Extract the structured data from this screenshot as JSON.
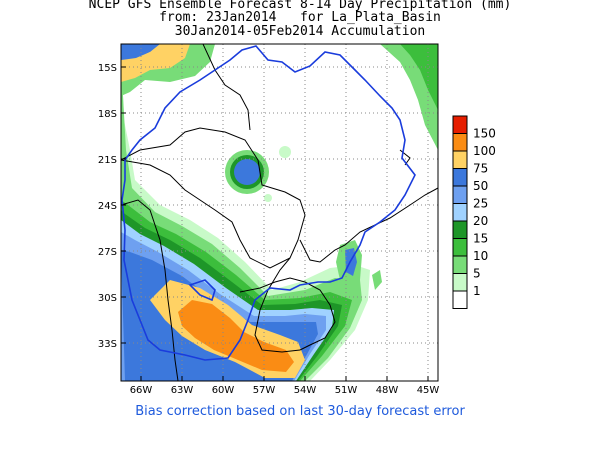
{
  "title": {
    "line1": "NCEP GFS Ensemble Forecast 8-14 Day Precipitation (mm)",
    "line2": "from: 23Jan2014   for La_Plata_Basin",
    "line3": "30Jan2014-05Feb2014 Accumulation"
  },
  "footer": "Bias correction based on last 30-day forecast error",
  "axes": {
    "lat_labels": [
      "15S",
      "18S",
      "21S",
      "24S",
      "27S",
      "30S",
      "33S"
    ],
    "lon_labels": [
      "66W",
      "63W",
      "60W",
      "57W",
      "54W",
      "51W",
      "48W",
      "45W"
    ]
  },
  "legend": {
    "items": [
      {
        "label": "150",
        "color": "#e61e00"
      },
      {
        "label": "100",
        "color": "#fa8c14"
      },
      {
        "label": "75",
        "color": "#ffd264"
      },
      {
        "label": "50",
        "color": "#3c78dc"
      },
      {
        "label": "25",
        "color": "#6ea0f0"
      },
      {
        "label": "20",
        "color": "#a0d2ff"
      },
      {
        "label": "15",
        "color": "#1e9628"
      },
      {
        "label": "10",
        "color": "#3cbe3c"
      },
      {
        "label": "5",
        "color": "#78dc78"
      },
      {
        "label": "1",
        "color": "#c8fac8"
      },
      {
        "label": "",
        "color": "#ffffff"
      }
    ]
  }
}
